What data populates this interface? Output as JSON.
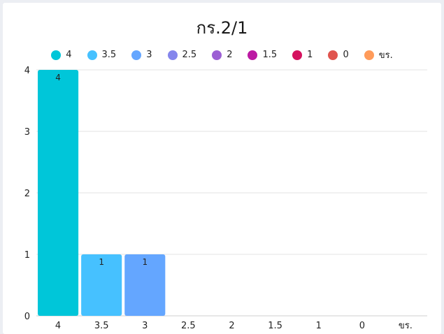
{
  "chart_data": {
    "type": "bar",
    "title": "กร.2/1",
    "categories": [
      "4",
      "3.5",
      "3",
      "2.5",
      "2",
      "1.5",
      "1",
      "0",
      "ขร."
    ],
    "values": [
      4,
      1,
      1,
      0,
      0,
      0,
      0,
      0,
      0
    ],
    "colors": [
      "#00c6d9",
      "#46c1ff",
      "#64a6ff",
      "#8586ec",
      "#9c5fd4",
      "#bc1aa3",
      "#d5125f",
      "#e0544e",
      "#ff9b5a"
    ],
    "yticks": [
      "0",
      "1",
      "2",
      "3",
      "4"
    ],
    "ylim": [
      0,
      4
    ],
    "grid": true,
    "legend_placement": "top"
  }
}
